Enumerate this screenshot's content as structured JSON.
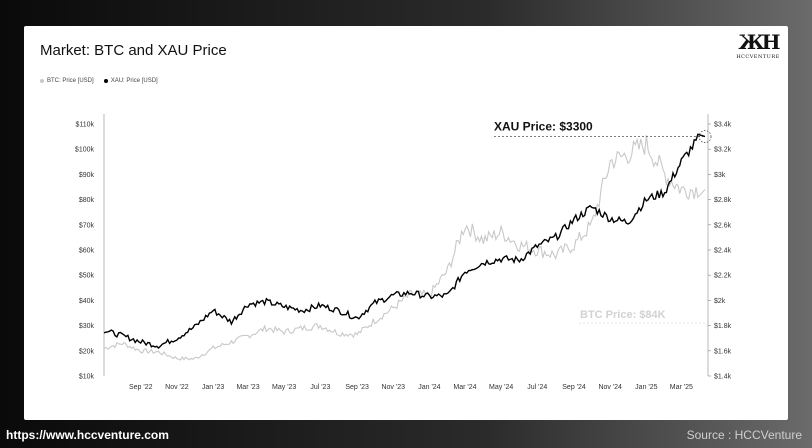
{
  "title": "Market: BTC and XAU Price",
  "logo_text": "HCCVENTURE",
  "footer": {
    "url": "https://www.hccventure.com",
    "source": "Source : HCCVenture"
  },
  "colors": {
    "btc": "#c8c8c8",
    "xau": "#000000"
  },
  "chart_data": {
    "type": "line",
    "x": [
      "2022-07",
      "2022-08",
      "2022-09",
      "2022-10",
      "2022-11",
      "2022-12",
      "2023-01",
      "2023-02",
      "2023-03",
      "2023-04",
      "2023-05",
      "2023-06",
      "2023-07",
      "2023-08",
      "2023-09",
      "2023-10",
      "2023-11",
      "2023-12",
      "2024-01",
      "2024-02",
      "2024-03",
      "2024-04",
      "2024-05",
      "2024-06",
      "2024-07",
      "2024-08",
      "2024-09",
      "2024-10",
      "2024-11",
      "2024-12",
      "2025-01",
      "2025-02",
      "2025-03",
      "2025-04"
    ],
    "x_tick_labels": [
      "Sep '22",
      "Nov '22",
      "Jan '23",
      "Mar '23",
      "May '23",
      "Jul '23",
      "Sep '23",
      "Nov '23",
      "Jan '24",
      "Mar '24",
      "May '24",
      "Jul '24",
      "Sep '24",
      "Nov '24",
      "Jan '25",
      "Mar '25"
    ],
    "series": [
      {
        "name": "BTC: Price [USD]",
        "axis": "left",
        "values": [
          21000,
          23000,
          20000,
          19500,
          17000,
          16800,
          21000,
          23500,
          26000,
          29000,
          27500,
          29000,
          30000,
          27000,
          26500,
          32000,
          37000,
          42500,
          42000,
          52000,
          70000,
          64000,
          67000,
          62000,
          60000,
          58000,
          62000,
          70000,
          95000,
          98000,
          102000,
          90000,
          84000,
          84000
        ]
      },
      {
        "name": "XAU: Price [USD]",
        "axis": "right",
        "values": [
          1760,
          1720,
          1670,
          1640,
          1700,
          1790,
          1920,
          1830,
          1970,
          1990,
          1950,
          1920,
          1960,
          1920,
          1860,
          1980,
          2040,
          2060,
          2030,
          2040,
          2230,
          2300,
          2330,
          2320,
          2430,
          2500,
          2640,
          2740,
          2650,
          2620,
          2800,
          2860,
          3100,
          3300
        ]
      }
    ],
    "y_left": {
      "ticks": [
        "$10k",
        "$20k",
        "$30k",
        "$40k",
        "$50k",
        "$60k",
        "$70k",
        "$80k",
        "$90k",
        "$100k",
        "$110k"
      ],
      "range": [
        10000,
        110000
      ]
    },
    "y_right": {
      "ticks": [
        "$1.4k",
        "$1.6k",
        "$1.8k",
        "$2k",
        "$2.2k",
        "$2.4k",
        "$2.6k",
        "$2.8k",
        "$3k",
        "$3.2k",
        "$3.4k"
      ],
      "range": [
        1400,
        3400
      ]
    },
    "annotations": [
      {
        "text": "XAU Price: $3300",
        "series": "XAU: Price [USD]"
      },
      {
        "text": "BTC Price: $84K",
        "series": "BTC: Price [USD]"
      }
    ],
    "legend_position": "top-left",
    "grid": false
  }
}
